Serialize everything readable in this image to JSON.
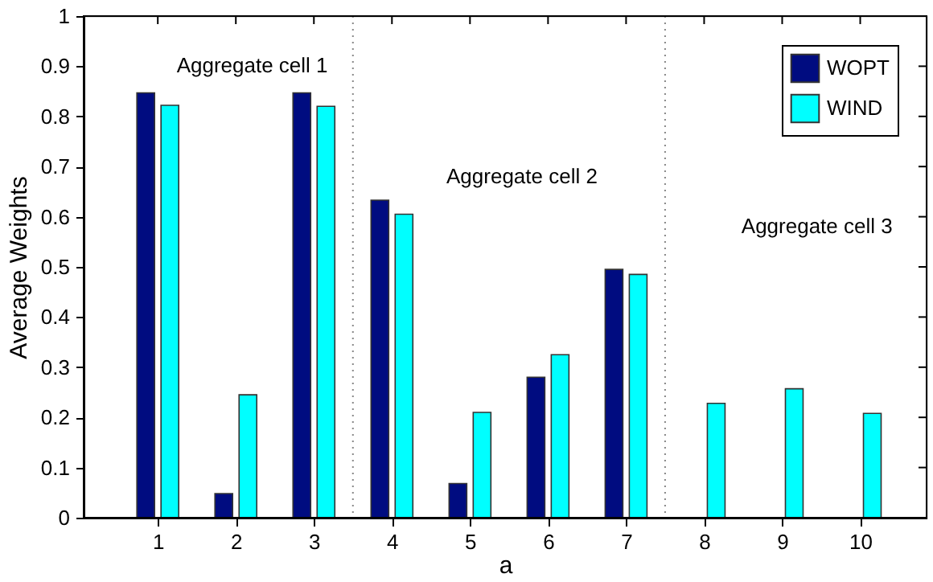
{
  "chart_data": {
    "type": "bar",
    "xlabel": "a",
    "ylabel": "Average Weights",
    "x": [
      1,
      2,
      3,
      4,
      5,
      6,
      7,
      8,
      9,
      10
    ],
    "series": [
      {
        "name": "WOPT",
        "color": "#000c80",
        "values": [
          0.847,
          0.048,
          0.847,
          0.633,
          0.068,
          0.28,
          0.495,
          null,
          null,
          null
        ]
      },
      {
        "name": "WIND",
        "color": "#00ffff",
        "values": [
          0.822,
          0.245,
          0.82,
          0.605,
          0.21,
          0.325,
          0.485,
          0.228,
          0.257,
          0.208
        ]
      }
    ],
    "xlim": [
      0.05,
      10.85
    ],
    "xticks": [
      1,
      2,
      3,
      4,
      5,
      6,
      7,
      8,
      9,
      10
    ],
    "ylim": [
      0,
      1
    ],
    "yticks": [
      0,
      0.1,
      0.2,
      0.3,
      0.4,
      0.5,
      0.6,
      0.7,
      0.8,
      0.9,
      1
    ],
    "ref_lines": [
      {
        "axis": "x",
        "value": 3.5,
        "color": "#888888",
        "line_style": "dotted"
      },
      {
        "axis": "x",
        "value": 7.5,
        "color": "#888888",
        "line_style": "dotted"
      }
    ],
    "annotations": [
      "Aggregate cell 1",
      "Aggregate cell 2",
      "Aggregate cell 3"
    ],
    "grid": false,
    "legend": "top right"
  }
}
